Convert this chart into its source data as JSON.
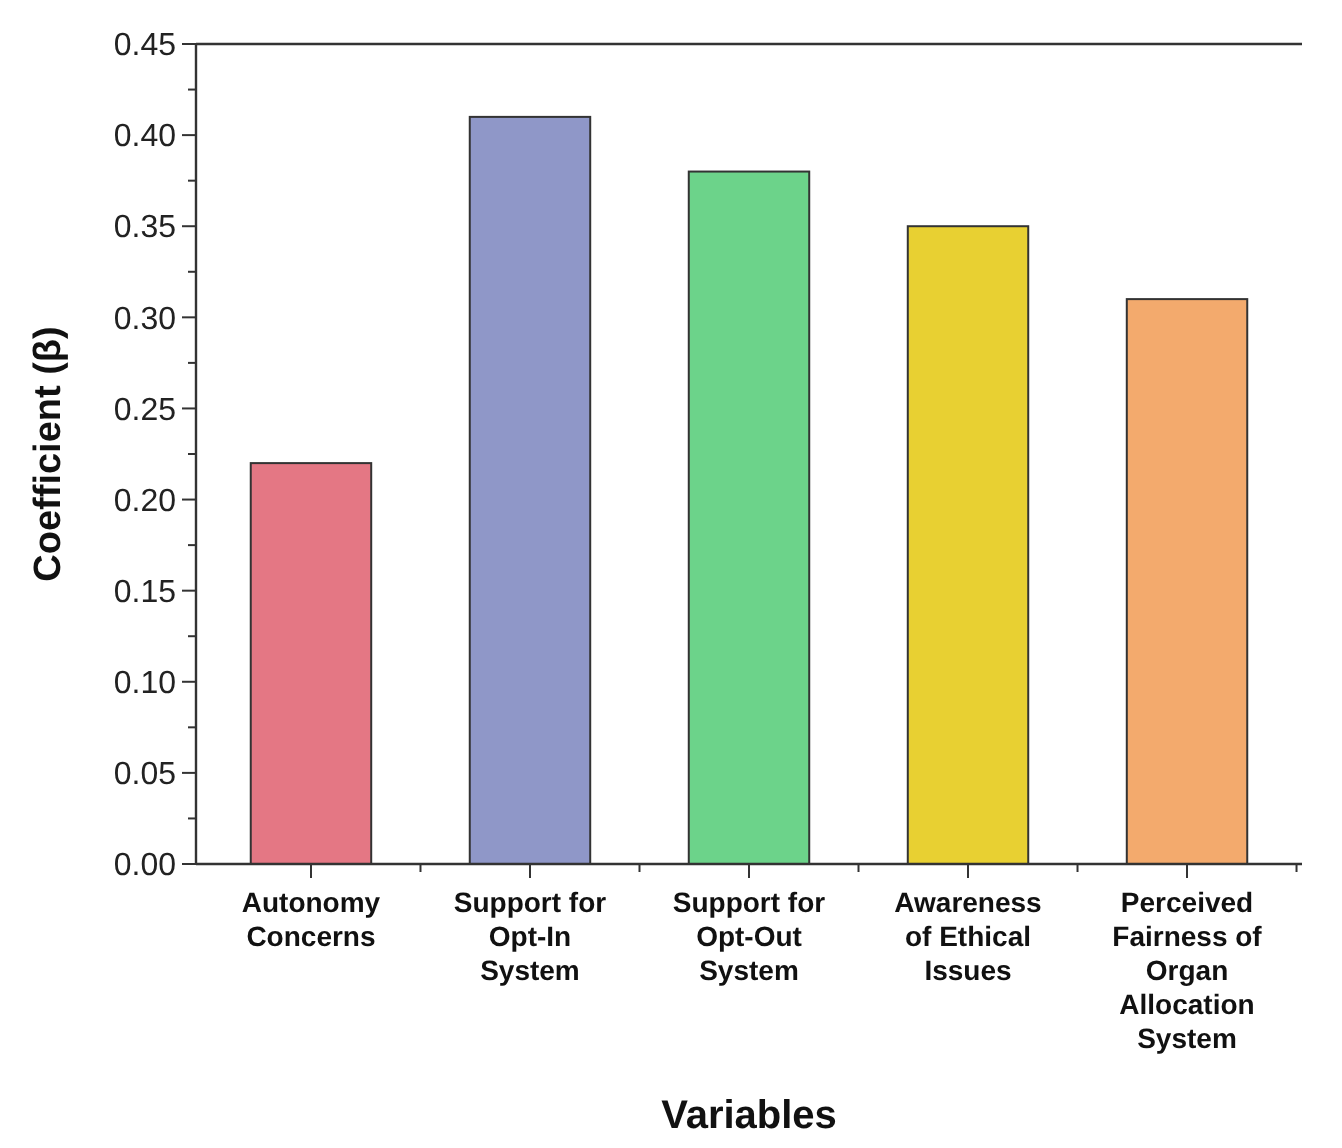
{
  "chart_data": {
    "type": "bar",
    "xlabel": "Variables",
    "ylabel": "Coefficient (β)",
    "categories": [
      "Autonomy Concerns",
      "Support for Opt-In System",
      "Support for Opt-Out System",
      "Awareness of Ethical Issues",
      "Perceived Fairness of Organ Allocation System"
    ],
    "values": [
      0.22,
      0.41,
      0.38,
      0.35,
      0.31
    ],
    "colors": [
      "#e47784",
      "#8f97c8",
      "#6cd38a",
      "#e8d032",
      "#f3aa6d"
    ],
    "ylim": [
      0,
      0.45
    ],
    "yticks": [
      {
        "value": 0,
        "label": "0.00"
      },
      {
        "value": 0.05,
        "label": "0.05"
      },
      {
        "value": 0.1,
        "label": "0.10"
      },
      {
        "value": 0.15,
        "label": "0.15"
      },
      {
        "value": 0.2,
        "label": "0.20"
      },
      {
        "value": 0.25,
        "label": "0.25"
      },
      {
        "value": 0.3,
        "label": "0.30"
      },
      {
        "value": 0.35,
        "label": "0.35"
      },
      {
        "value": 0.4,
        "label": "0.40"
      },
      {
        "value": 0.45,
        "label": "0.45"
      }
    ],
    "grid": false
  }
}
